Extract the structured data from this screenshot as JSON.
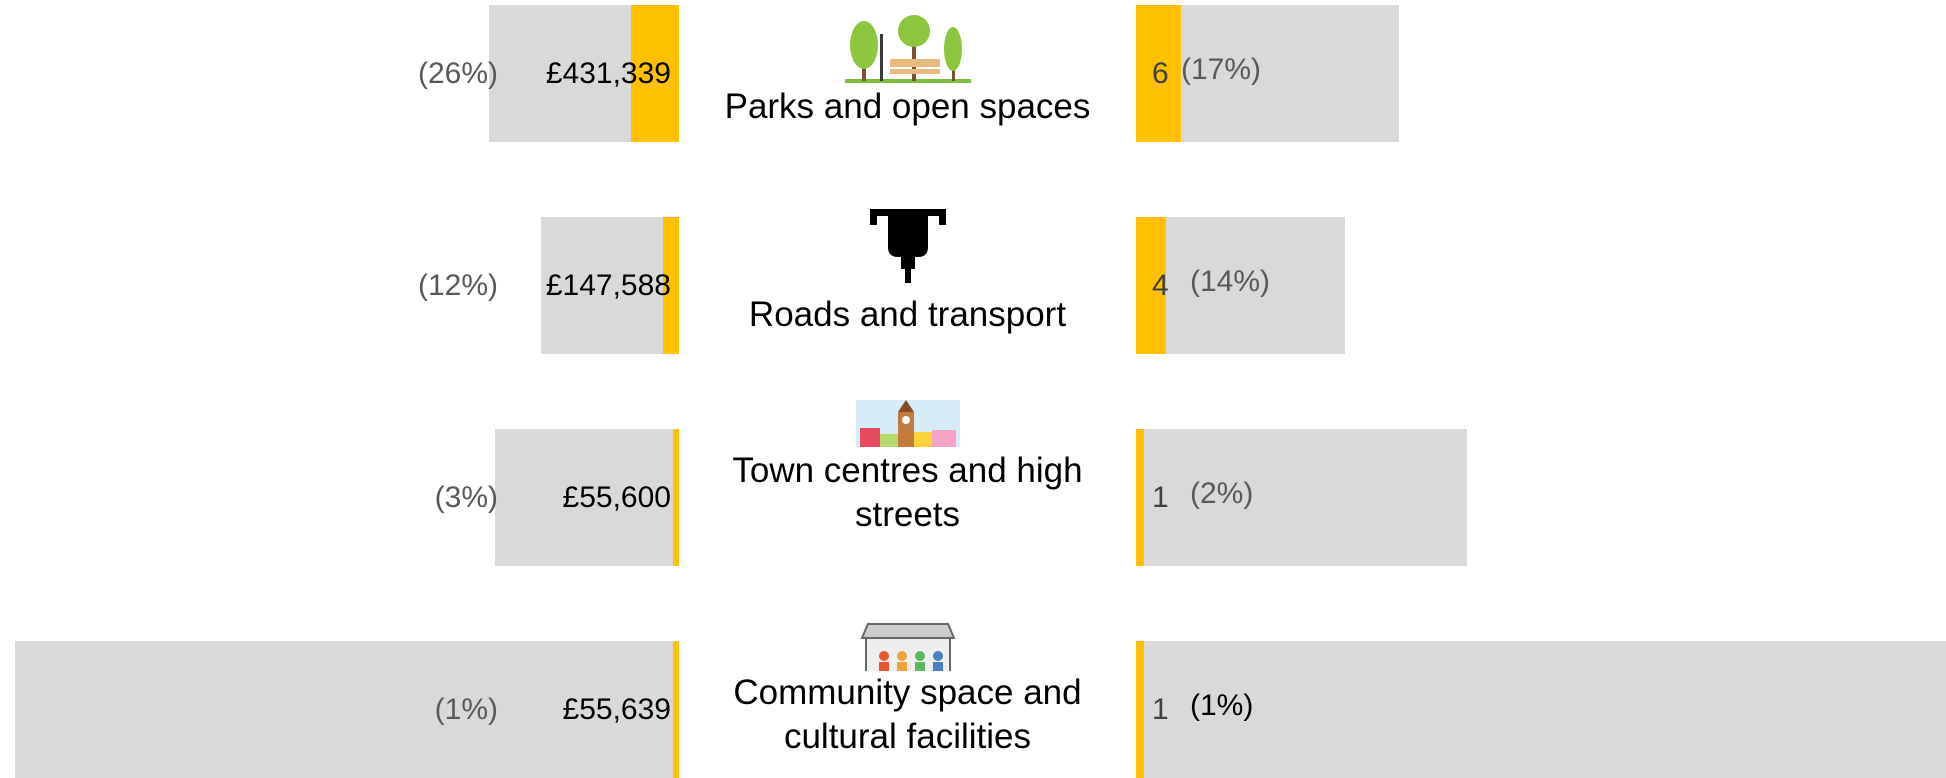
{
  "chart_data": {
    "type": "butterfly",
    "categories": [
      "Parks and open spaces",
      "Roads and transport",
      "Town centres and high streets",
      "Community space and cultural facilities"
    ],
    "color": "#ffc000",
    "amount": {
      "values": [
        431339,
        147588,
        55600,
        55639
      ],
      "value_labels": [
        "£431,339",
        "£147,588",
        "£55,600",
        "£55,639"
      ]
    },
    "amount_share": {
      "values": [
        26,
        12,
        3,
        1
      ],
      "value_labels": [
        "(26%)",
        "(12%)",
        "(3%)",
        "(1%)"
      ]
    },
    "count": {
      "values": [
        6,
        4,
        1,
        1
      ]
    },
    "count_share": {
      "values": [
        17,
        14,
        2,
        1
      ],
      "value_labels": [
        "(17%)",
        "(14%)",
        "(2%)",
        "(1%)"
      ]
    }
  }
}
